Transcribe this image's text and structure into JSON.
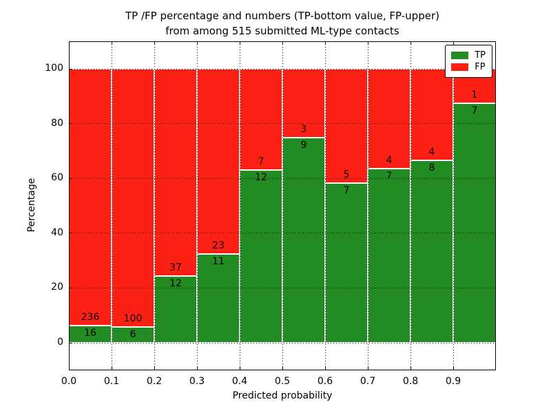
{
  "title": {
    "line1": "TP /FP percentage and numbers (TP-bottom value, FP-upper)",
    "line2": "from among 515 submitted ML-type contacts"
  },
  "axes": {
    "xlabel": "Predicted probability",
    "ylabel": "Percentage",
    "x_tick_labels": [
      "0.0",
      "0.1",
      "0.2",
      "0.3",
      "0.4",
      "0.5",
      "0.6",
      "0.7",
      "0.8",
      "0.9"
    ],
    "y_tick_labels": [
      "0",
      "20",
      "40",
      "60",
      "80",
      "100"
    ],
    "y_tick_values": [
      0,
      20,
      40,
      60,
      80,
      100
    ],
    "xlim": [
      0.0,
      1.0
    ],
    "ylim": [
      -10,
      110
    ],
    "grid": "dotted black, drawn above bars"
  },
  "legend": {
    "position": "upper right",
    "items": [
      {
        "label": "TP",
        "color": "#228b22"
      },
      {
        "label": "FP",
        "color": "#fd2015"
      }
    ]
  },
  "chart_data": {
    "type": "bar",
    "stacked": true,
    "normalized_to_percent": 100,
    "title": "TP /FP percentage and numbers (TP-bottom value, FP-upper) from among 515 submitted ML-type contacts",
    "xlabel": "Predicted probability",
    "ylabel": "Percentage",
    "ylim": [
      -10,
      110
    ],
    "xlim": [
      0.0,
      1.0
    ],
    "bin_width": 0.1,
    "bin_starts": [
      0.0,
      0.1,
      0.2,
      0.3,
      0.4,
      0.5,
      0.6,
      0.7,
      0.8,
      0.9
    ],
    "total_contacts": 515,
    "series": [
      {
        "name": "TP",
        "color": "#228b22",
        "values": [
          16,
          6,
          12,
          11,
          12,
          9,
          7,
          7,
          8,
          7
        ]
      },
      {
        "name": "FP",
        "color": "#fd2015",
        "values": [
          236,
          100,
          37,
          23,
          7,
          3,
          5,
          4,
          4,
          1
        ]
      }
    ],
    "tp_percent": [
      6.35,
      5.66,
      24.49,
      32.35,
      63.16,
      75.0,
      58.33,
      63.64,
      66.67,
      87.5
    ]
  }
}
